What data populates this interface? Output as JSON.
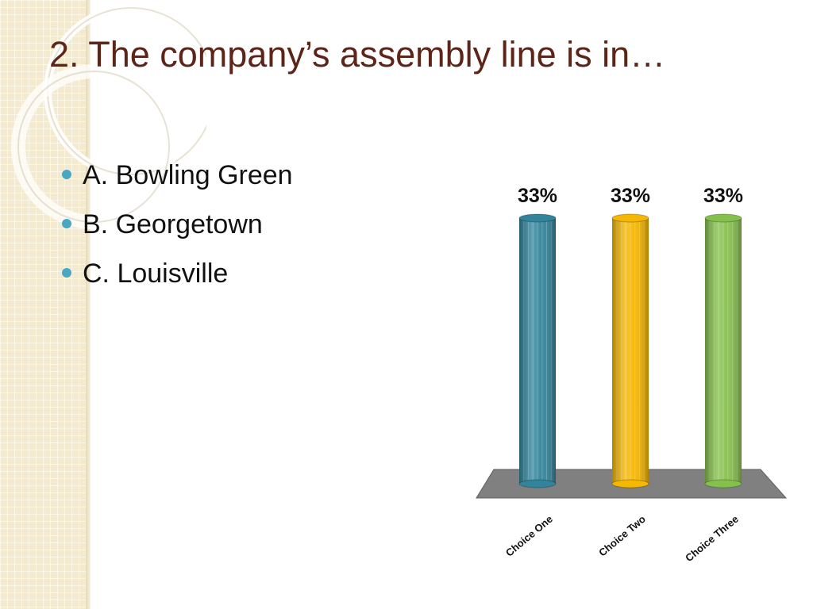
{
  "slide": {
    "title": "2.  The company’s assembly line is in…",
    "options": [
      {
        "label": "A.  Bowling Green"
      },
      {
        "label": "B.  Georgetown"
      },
      {
        "label": "C.  Louisville"
      }
    ]
  },
  "chart_data": {
    "type": "bar",
    "categories": [
      "Choice One",
      "Choice Two",
      "Choice Three"
    ],
    "values": [
      33,
      33,
      33
    ],
    "data_labels": [
      "33%",
      "33%",
      "33%"
    ],
    "colors": [
      "#31849b",
      "#f5b700",
      "#86c04c"
    ],
    "ylim": [
      0,
      33
    ],
    "grid": false,
    "legend": "none",
    "title": "",
    "xlabel": "",
    "ylabel": ""
  }
}
